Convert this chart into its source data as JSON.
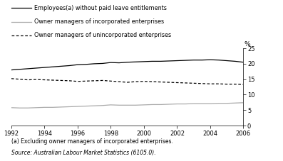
{
  "years": [
    1992,
    1992.5,
    1993,
    1993.5,
    1994,
    1994.5,
    1995,
    1995.5,
    1996,
    1996.5,
    1997,
    1997.5,
    1998,
    1998.5,
    1999,
    1999.5,
    2000,
    2000.5,
    2001,
    2001.5,
    2002,
    2002.5,
    2003,
    2003.5,
    2004,
    2004.5,
    2005,
    2005.5,
    2006
  ],
  "employees_no_leave": [
    18.0,
    18.2,
    18.4,
    18.6,
    18.8,
    19.0,
    19.2,
    19.4,
    19.7,
    19.8,
    20.0,
    20.1,
    20.4,
    20.3,
    20.5,
    20.6,
    20.7,
    20.8,
    20.8,
    20.9,
    21.0,
    21.1,
    21.2,
    21.2,
    21.3,
    21.2,
    21.0,
    20.8,
    20.5
  ],
  "owner_incorporated": [
    5.8,
    5.7,
    5.7,
    5.8,
    5.9,
    5.9,
    6.0,
    6.1,
    6.2,
    6.3,
    6.4,
    6.5,
    6.7,
    6.6,
    6.6,
    6.6,
    6.7,
    6.8,
    6.8,
    6.9,
    7.0,
    7.0,
    7.1,
    7.1,
    7.1,
    7.2,
    7.2,
    7.3,
    7.4
  ],
  "owner_unincorporated": [
    15.2,
    15.0,
    14.8,
    14.9,
    14.8,
    14.7,
    14.6,
    14.5,
    14.3,
    14.4,
    14.5,
    14.6,
    14.4,
    14.2,
    14.0,
    14.2,
    14.3,
    14.2,
    14.1,
    14.0,
    13.9,
    13.8,
    13.7,
    13.6,
    13.5,
    13.5,
    13.4,
    13.4,
    13.3
  ],
  "ylim": [
    0,
    25
  ],
  "yticks": [
    0,
    5,
    10,
    15,
    20,
    25
  ],
  "xlim": [
    1992,
    2006
  ],
  "xticks": [
    1992,
    1994,
    1996,
    1998,
    2000,
    2002,
    2004,
    2006
  ],
  "legend_employees": "Employees(a) without paid leave entitlements",
  "legend_incorporated": "Owner managers of incorporated enterprises",
  "legend_unincorporated": "Owner managers of unincorporated enterprises",
  "color_employees": "#000000",
  "color_incorporated": "#aaaaaa",
  "color_unincorporated": "#000000",
  "percent_label": "%",
  "footnote1": "(a) Excluding owner managers of incorporated enterprises.",
  "footnote2": "Source: Australian Labour Market Statistics (6105.0).",
  "bg_color": "#ffffff",
  "line_width": 0.9
}
